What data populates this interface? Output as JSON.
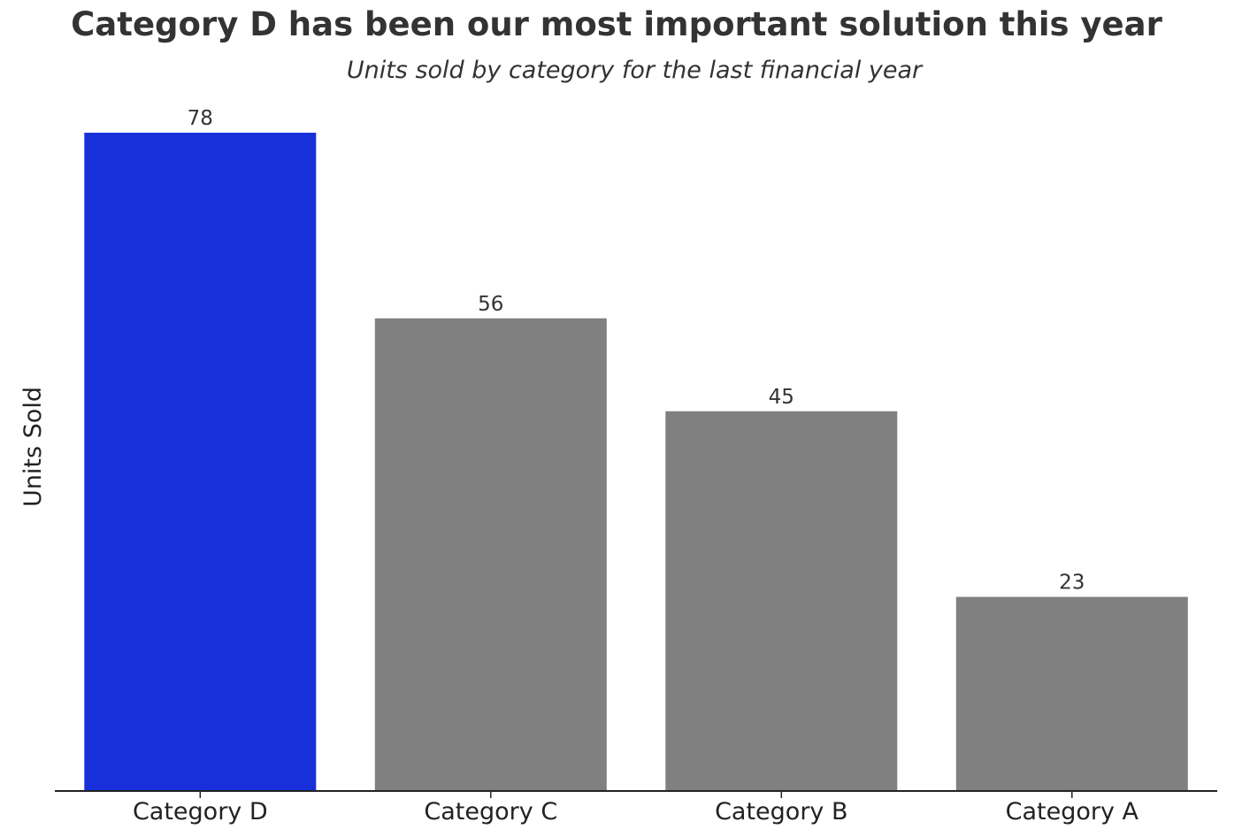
{
  "chart_data": {
    "type": "bar",
    "title": "Category D has been our most important solution this year",
    "subtitle": "Units sold by category for the last financial year",
    "xlabel": "",
    "ylabel": "Units Sold",
    "categories": [
      "Category D",
      "Category C",
      "Category B",
      "Category A"
    ],
    "values": [
      78,
      56,
      45,
      23
    ],
    "ylim": [
      0,
      78
    ],
    "grid": false,
    "legend": "none",
    "highlight_category": "Category D",
    "colors": {
      "highlight": "#1730DA",
      "default": "#808080",
      "text": "#333333",
      "axis": "#222222"
    }
  }
}
